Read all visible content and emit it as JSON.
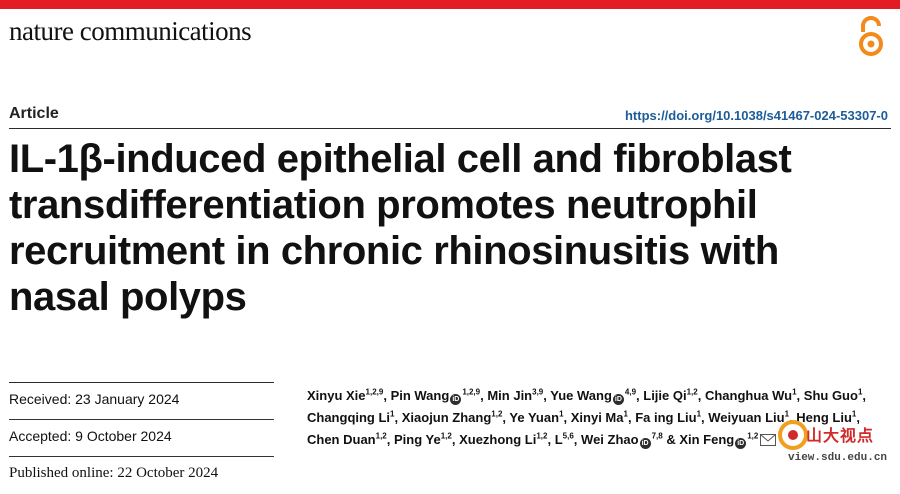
{
  "header": {
    "journal_name": "nature communications",
    "accent_color": "#e31b23",
    "open_access_icon": "open-access-icon"
  },
  "article": {
    "type": "Article",
    "doi": "https://doi.org/10.1038/s41467-024-53307-0",
    "title_lines": [
      "IL-1β-induced epithelial cell and fibroblast",
      "transdifferentiation promotes neutrophil",
      "recruitment in chronic rhinosinusitis with",
      "nasal polyps"
    ]
  },
  "dates": {
    "received": "Received: 23 January 2024",
    "accepted": "Accepted: 9 October 2024",
    "published": "Published online: 22 October 2024"
  },
  "authors": [
    {
      "name": "Xinyu Xie",
      "sup": "1,2,9",
      "orcid": false
    },
    {
      "name": "Pin Wang",
      "sup": "1,2,9",
      "orcid": true
    },
    {
      "name": "Min Jin",
      "sup": "3,9",
      "orcid": false
    },
    {
      "name": "Yue Wang",
      "sup": "4,9",
      "orcid": true
    },
    {
      "name": "Lijie Qi",
      "sup": "1,2",
      "orcid": false
    },
    {
      "name": "Changhua Wu",
      "sup": "1",
      "orcid": false
    },
    {
      "name": "Shu Guo",
      "sup": "1",
      "orcid": false
    },
    {
      "name": "Changqing Li",
      "sup": "1",
      "orcid": false
    },
    {
      "name": "Xiaojun Zhang",
      "sup": "1,2",
      "orcid": false
    },
    {
      "name": "Ye Yuan",
      "sup": "1",
      "orcid": false
    },
    {
      "name": "Xinyi Ma",
      "sup": "1",
      "orcid": false
    },
    {
      "name": "Fa  ing Liu",
      "sup": "1",
      "orcid": false
    },
    {
      "name": "Weiyuan Liu",
      "sup": "1",
      "orcid": false
    },
    {
      "name": "Heng Liu",
      "sup": "1",
      "orcid": false
    },
    {
      "name": "Chen Duan",
      "sup": "1,2",
      "orcid": false
    },
    {
      "name": "Ping Ye",
      "sup": "1,2",
      "orcid": false
    },
    {
      "name": "Xuezhong Li",
      "sup": "1,2",
      "orcid": false
    },
    {
      "name": "L",
      "sup": "5,6",
      "orcid": false
    },
    {
      "name": "Wei Zhao",
      "sup": "7,8",
      "orcid": true
    },
    {
      "name": "Xin Feng",
      "sup": "1,2",
      "orcid": true
    }
  ],
  "author_separator": ", ",
  "author_last_joiner": " & ",
  "watermark": {
    "text": "山大视点",
    "url": "view.sdu.edu.cn"
  }
}
